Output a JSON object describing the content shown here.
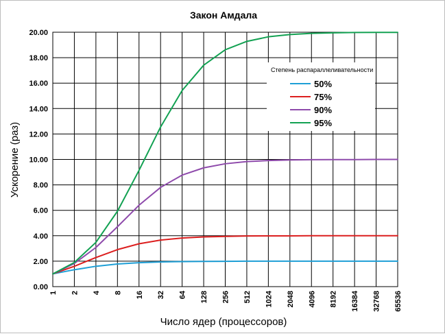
{
  "chart_data": {
    "type": "line",
    "title": "Закон Амдала",
    "xlabel": "Число ядер (процессоров)",
    "ylabel": "Ускорение (раз)",
    "x_scale": "log2",
    "categories": [
      "1",
      "2",
      "4",
      "8",
      "16",
      "32",
      "64",
      "128",
      "256",
      "512",
      "1024",
      "2048",
      "4096",
      "8192",
      "16384",
      "32768",
      "65536"
    ],
    "y_ticks": [
      "0.00",
      "2.00",
      "4.00",
      "6.00",
      "8.00",
      "10.00",
      "12.00",
      "14.00",
      "16.00",
      "18.00",
      "20.00"
    ],
    "ylim": [
      0,
      20
    ],
    "grid": true,
    "legend": {
      "title": "Степень распараллеливательности",
      "placement": "right, upper middle"
    },
    "series": [
      {
        "name": "50%",
        "color": "#1e9fd6",
        "values": [
          1.0,
          1.33,
          1.6,
          1.78,
          1.88,
          1.94,
          1.97,
          1.98,
          1.99,
          2.0,
          2.0,
          2.0,
          2.0,
          2.0,
          2.0,
          2.0,
          2.0
        ]
      },
      {
        "name": "75%",
        "color": "#dc1e1e",
        "values": [
          1.0,
          1.6,
          2.29,
          2.91,
          3.37,
          3.66,
          3.82,
          3.91,
          3.95,
          3.98,
          3.99,
          3.99,
          4.0,
          4.0,
          4.0,
          4.0,
          4.0
        ]
      },
      {
        "name": "90%",
        "color": "#8e4aab",
        "values": [
          1.0,
          1.82,
          3.08,
          4.71,
          6.4,
          7.8,
          8.77,
          9.34,
          9.66,
          9.83,
          9.91,
          9.96,
          9.98,
          9.99,
          9.99,
          10.0,
          10.0
        ]
      },
      {
        "name": "95%",
        "color": "#12a152",
        "values": [
          1.0,
          1.9,
          3.48,
          5.93,
          9.14,
          12.55,
          15.42,
          17.41,
          18.62,
          19.28,
          19.64,
          19.82,
          19.91,
          19.95,
          19.98,
          19.99,
          19.99
        ]
      }
    ]
  }
}
